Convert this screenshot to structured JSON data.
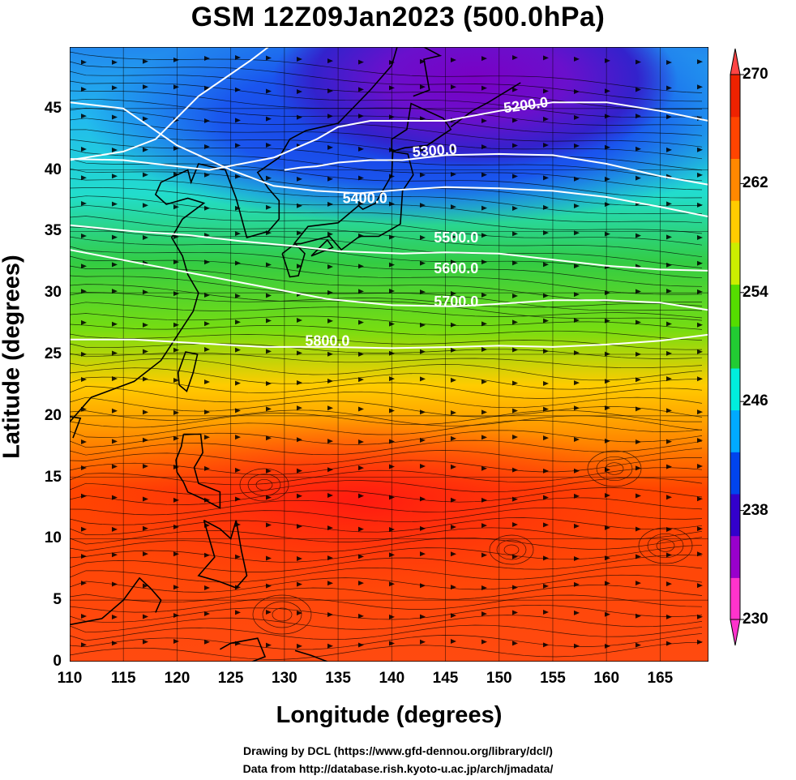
{
  "title": "GSM 12Z09Jan2023 (500.0hPa)",
  "axes": {
    "xlabel": "Longitude (degrees)",
    "ylabel": "Latitude  (degrees)",
    "x_ticks": [
      "110",
      "115",
      "120",
      "125",
      "130",
      "135",
      "140",
      "145",
      "150",
      "155",
      "160",
      "165"
    ],
    "y_ticks": [
      "0",
      "5",
      "10",
      "15",
      "20",
      "25",
      "30",
      "35",
      "40",
      "45"
    ],
    "xlim": [
      110,
      169.5
    ],
    "ylim": [
      0,
      50
    ]
  },
  "colorbar": {
    "ticks": [
      "270",
      "262",
      "254",
      "246",
      "238",
      "230"
    ],
    "range": [
      230,
      270
    ],
    "colors": [
      "#ff33cc",
      "#9900cc",
      "#3300cc",
      "#0044ee",
      "#00aaff",
      "#00eedd",
      "#22cc33",
      "#55dd00",
      "#ccee00",
      "#ffcc00",
      "#ff8800",
      "#ff4400",
      "#ee2200"
    ]
  },
  "contours": [
    {
      "label": "5200.0"
    },
    {
      "label": "5300.0"
    },
    {
      "label": "5400.0"
    },
    {
      "label": "5500.0"
    },
    {
      "label": "5600.0"
    },
    {
      "label": "5700.0"
    },
    {
      "label": "5800.0"
    }
  ],
  "credits": {
    "line1": "Drawing by DCL (https://www.gfd-dennou.org/library/dcl/)",
    "line2": "Data from http://database.rish.kyoto-u.ac.jp/arch/jmadata/"
  }
}
